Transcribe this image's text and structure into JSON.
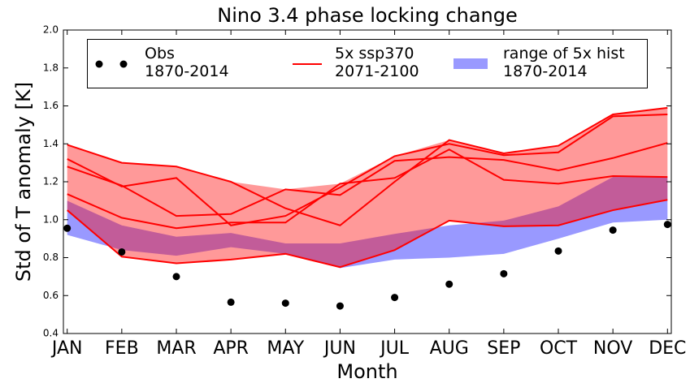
{
  "chart_data": {
    "type": "line",
    "title": "Nino 3.4 phase locking change",
    "x_label": "Month",
    "y_label": "Std of T anomaly [K]",
    "categories": [
      "JAN",
      "FEB",
      "MAR",
      "APR",
      "MAY",
      "JUN",
      "JUL",
      "AUG",
      "SEP",
      "OCT",
      "NOV",
      "DEC"
    ],
    "xlim": [
      -0.07,
      11.07
    ],
    "ylim": [
      0.4,
      2.0
    ],
    "yticks": [
      {
        "value": 0.4,
        "label": "0.4"
      },
      {
        "value": 0.6,
        "label": "0.6"
      },
      {
        "value": 0.8,
        "label": "0.8"
      },
      {
        "value": 1.0,
        "label": "1.0"
      },
      {
        "value": 1.2,
        "label": "1.2"
      },
      {
        "value": 1.4,
        "label": "1.4"
      },
      {
        "value": 1.6,
        "label": "1.6"
      },
      {
        "value": 1.8,
        "label": "1.8"
      },
      {
        "value": 2.0,
        "label": "2.0"
      }
    ],
    "legend": "upper center",
    "obs": {
      "name": "Obs\n1870-2014",
      "color": "#000000",
      "values": [
        0.955,
        0.83,
        0.7,
        0.565,
        0.56,
        0.545,
        0.59,
        0.66,
        0.715,
        0.835,
        0.945,
        0.975
      ]
    },
    "ssp": {
      "name": "5x ssp370\n2071-2100",
      "color": "#ff0000",
      "lines": [
        [
          1.395,
          1.3,
          1.28,
          1.2,
          1.06,
          0.97,
          1.2,
          1.42,
          1.35,
          1.39,
          1.555,
          1.59
        ],
        [
          1.32,
          1.175,
          1.22,
          0.97,
          1.02,
          1.17,
          1.335,
          1.4,
          1.34,
          1.355,
          1.545,
          1.555
        ],
        [
          1.28,
          1.18,
          1.02,
          1.03,
          1.16,
          1.13,
          1.31,
          1.33,
          1.315,
          1.26,
          1.325,
          1.405
        ],
        [
          1.135,
          1.01,
          0.955,
          0.985,
          0.985,
          1.19,
          1.22,
          1.37,
          1.21,
          1.19,
          1.23,
          1.225
        ],
        [
          1.05,
          0.805,
          0.77,
          0.79,
          0.82,
          0.75,
          0.84,
          0.995,
          0.965,
          0.97,
          1.05,
          1.105
        ]
      ]
    },
    "hist": {
      "name": "range of 5x hist\n1870-2014",
      "color": "#0000ff",
      "upper": [
        1.1,
        0.97,
        0.91,
        0.93,
        0.875,
        0.875,
        0.925,
        0.97,
        0.995,
        1.07,
        1.225,
        1.225
      ],
      "lower": [
        0.92,
        0.84,
        0.81,
        0.855,
        0.82,
        0.745,
        0.79,
        0.8,
        0.82,
        0.9,
        0.985,
        1.0
      ]
    }
  }
}
